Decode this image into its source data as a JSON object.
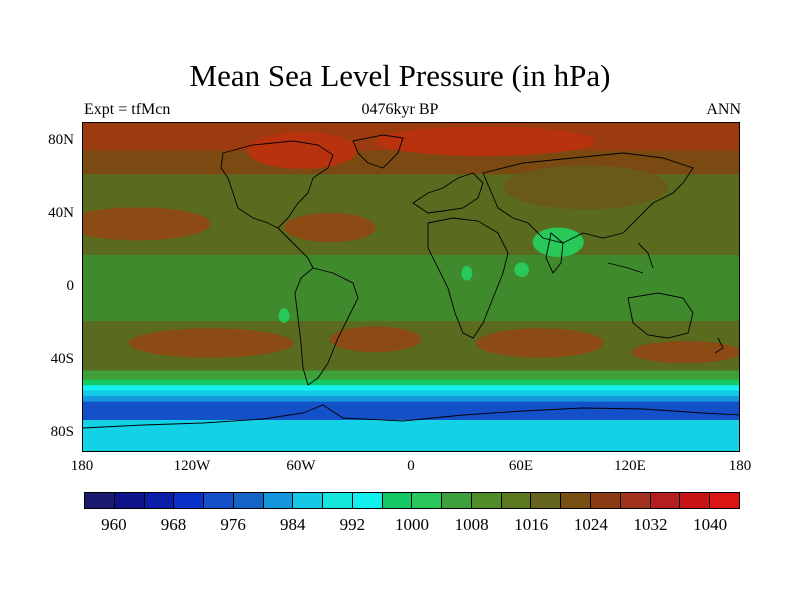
{
  "title": "Mean Sea Level Pressure (in hPa)",
  "subtitle_left": "Expt = tfMcn",
  "subtitle_center": "0476kyr BP",
  "subtitle_right": "ANN",
  "lat_labels": [
    "80N",
    "40N",
    "0",
    "40S",
    "80S"
  ],
  "lon_labels": [
    "180",
    "120W",
    "60W",
    "0",
    "60E",
    "120E",
    "180"
  ],
  "colorbar": {
    "labels": [
      "960",
      "968",
      "976",
      "984",
      "992",
      "1000",
      "1008",
      "1016",
      "1024",
      "1032",
      "1040"
    ],
    "colors": [
      "#1a1a70",
      "#10148c",
      "#0a1eaa",
      "#0a32c8",
      "#1450c8",
      "#1464c8",
      "#1496dc",
      "#14c8e6",
      "#14e6dc",
      "#14f0f0",
      "#14c864",
      "#28c85a",
      "#3ca03c",
      "#508c28",
      "#5a7820",
      "#64641e",
      "#785014",
      "#8c3c14",
      "#a0321e",
      "#b41e1e",
      "#c81414",
      "#dc1414"
    ]
  },
  "map": {
    "bands": [
      {
        "lat_top": 90,
        "lat_bot": 75,
        "color": "#9c3a10"
      },
      {
        "lat_top": 75,
        "lat_bot": 62,
        "color": "#7a4a12"
      },
      {
        "lat_top": 62,
        "lat_bot": 50,
        "color": "#5a6a1e"
      },
      {
        "lat_top": 50,
        "lat_bot": 18,
        "color": "#5a6a1e"
      },
      {
        "lat_top": 18,
        "lat_bot": -18,
        "color": "#3f8a2c"
      },
      {
        "lat_top": -18,
        "lat_bot": -45,
        "color": "#5a6a1e"
      },
      {
        "lat_top": -45,
        "lat_bot": -50,
        "color": "#3fa03a"
      },
      {
        "lat_top": -50,
        "lat_bot": -53,
        "color": "#14c864"
      },
      {
        "lat_top": -53,
        "lat_bot": -56,
        "color": "#14f0f0"
      },
      {
        "lat_top": -56,
        "lat_bot": -59,
        "color": "#14c8e6"
      },
      {
        "lat_top": -59,
        "lat_bot": -62,
        "color": "#1496dc"
      },
      {
        "lat_top": -62,
        "lat_bot": -72,
        "color": "#1450c8"
      },
      {
        "lat_top": -72,
        "lat_bot": -90,
        "color": "#14d2e6"
      }
    ],
    "highs": [
      {
        "lon": -150,
        "lat": 35,
        "rx": 40,
        "ry": 9,
        "color": "#8c4a14"
      },
      {
        "lon": -45,
        "lat": 33,
        "rx": 25,
        "ry": 8,
        "color": "#8c4a14"
      },
      {
        "lon": -110,
        "lat": -30,
        "rx": 45,
        "ry": 8,
        "color": "#8c4a14"
      },
      {
        "lon": -20,
        "lat": -28,
        "rx": 25,
        "ry": 7,
        "color": "#8c4a14"
      },
      {
        "lon": 70,
        "lat": -30,
        "rx": 35,
        "ry": 8,
        "color": "#8c4a14"
      },
      {
        "lon": 150,
        "lat": -35,
        "rx": 30,
        "ry": 6,
        "color": "#8c4a14"
      },
      {
        "lon": 95,
        "lat": 55,
        "rx": 45,
        "ry": 12,
        "color": "#6a5a18"
      },
      {
        "lon": -60,
        "lat": 75,
        "rx": 30,
        "ry": 10,
        "color": "#b8320e"
      },
      {
        "lon": 40,
        "lat": 80,
        "rx": 60,
        "ry": 8,
        "color": "#b8320e"
      }
    ],
    "lows": [
      {
        "lon": 80,
        "lat": 25,
        "rx": 14,
        "ry": 8,
        "color": "#28c85a"
      },
      {
        "lon": 60,
        "lat": 10,
        "rx": 4,
        "ry": 4,
        "color": "#28c85a"
      },
      {
        "lon": 30,
        "lat": 8,
        "rx": 3,
        "ry": 4,
        "color": "#28c85a"
      },
      {
        "lon": -70,
        "lat": -15,
        "rx": 3,
        "ry": 4,
        "color": "#28c85a"
      }
    ]
  }
}
